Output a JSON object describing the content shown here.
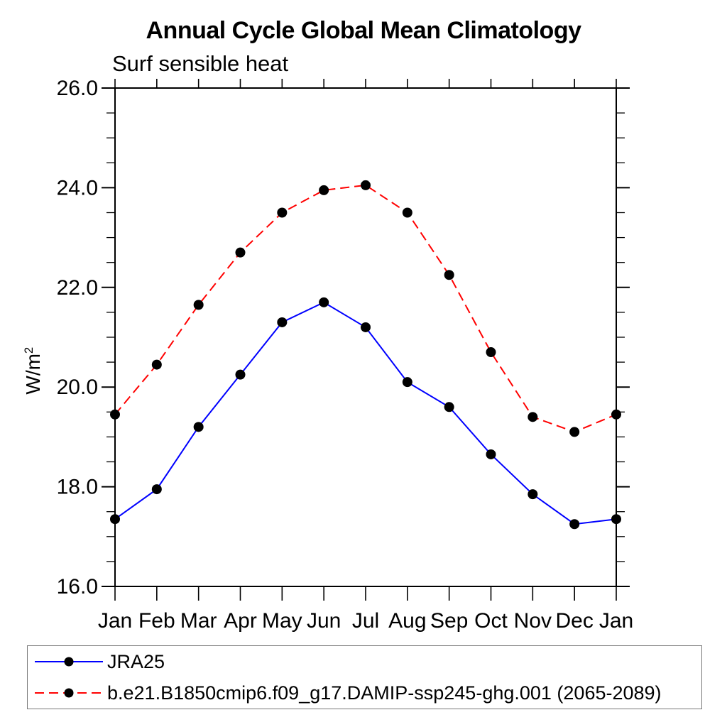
{
  "chart": {
    "title": "Annual Cycle Global Mean Climatology",
    "subtitle": "Surf sensible heat",
    "ylabel_base": "W/m",
    "ylabel_sup": "2"
  },
  "chart_data": {
    "type": "line",
    "title": "Annual Cycle Global Mean Climatology",
    "subtitle_left": "Surf sensible heat",
    "ylabel": "W/m²",
    "xlabel": "",
    "x_categories": [
      "Jan",
      "Feb",
      "Mar",
      "Apr",
      "May",
      "Jun",
      "Jul",
      "Aug",
      "Sep",
      "Oct",
      "Nov",
      "Dec",
      "Jan"
    ],
    "ylim": [
      16.0,
      26.0
    ],
    "ytick_major": [
      26.0,
      24.0,
      22.0,
      20.0,
      18.0,
      16.0
    ],
    "ytick_minor_step": 0.5,
    "ytick_label_format": "one-decimal",
    "grid": false,
    "frame": "full-box-with-mirrored-ticks",
    "legend_position": "bottom-left-box",
    "series": [
      {
        "name": "JRA25",
        "color": "#0000ff",
        "line_style": "solid",
        "marker": "filled-circle",
        "marker_color": "#000000",
        "values": [
          17.35,
          17.95,
          19.2,
          20.25,
          21.3,
          21.7,
          21.2,
          20.1,
          19.6,
          18.65,
          17.85,
          17.25,
          17.35
        ]
      },
      {
        "name": "b.e21.B1850cmip6.f09_g17.DAMIP-ssp245-ghg.001 (2065-2089)",
        "color": "#ff0000",
        "line_style": "dashed",
        "marker": "filled-circle",
        "marker_color": "#000000",
        "values": [
          19.45,
          20.45,
          21.65,
          22.7,
          23.5,
          23.95,
          24.05,
          23.5,
          22.25,
          20.7,
          19.4,
          19.1,
          19.45
        ]
      }
    ]
  }
}
